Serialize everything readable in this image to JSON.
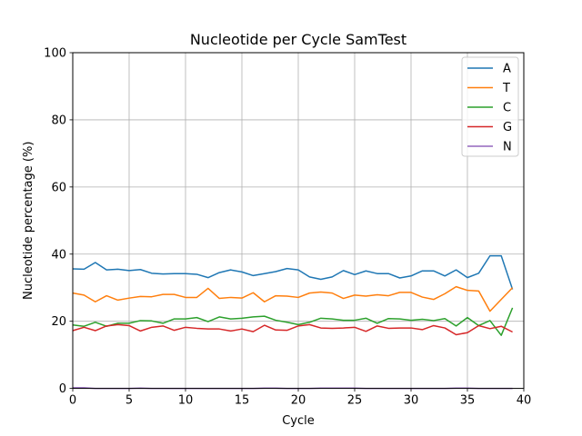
{
  "chart_data": {
    "type": "line",
    "title": "Nucleotide per Cycle SamTest",
    "xlabel": "Cycle",
    "ylabel": "Nucleotide percentage (%)",
    "xlim": [
      0,
      40
    ],
    "ylim": [
      0,
      100
    ],
    "xticks": [
      "0",
      "5",
      "10",
      "15",
      "20",
      "25",
      "30",
      "35",
      "40"
    ],
    "yticks": [
      "0",
      "20",
      "40",
      "60",
      "80",
      "100"
    ],
    "grid": true,
    "legend_position": "top-right",
    "x": [
      0,
      1,
      2,
      3,
      4,
      5,
      6,
      7,
      8,
      9,
      10,
      11,
      12,
      13,
      14,
      15,
      16,
      17,
      18,
      19,
      20,
      21,
      22,
      23,
      24,
      25,
      26,
      27,
      28,
      29,
      30,
      31,
      32,
      33,
      34,
      35,
      36,
      37,
      38,
      39
    ],
    "series": [
      {
        "name": "A",
        "color": "#1f77b4",
        "values": [
          35.6,
          35.5,
          37.5,
          35.3,
          35.5,
          35.1,
          35.4,
          34.3,
          34.1,
          34.2,
          34.2,
          34.0,
          33.0,
          34.5,
          35.3,
          34.7,
          33.6,
          34.2,
          34.8,
          35.7,
          35.3,
          33.2,
          32.5,
          33.2,
          35.1,
          33.9,
          35.0,
          34.2,
          34.2,
          32.9,
          33.5,
          35.0,
          35.0,
          33.5,
          35.3,
          33.0,
          34.3,
          39.5,
          39.5,
          29.5
        ]
      },
      {
        "name": "T",
        "color": "#ff7f0e",
        "values": [
          28.4,
          27.8,
          25.8,
          27.6,
          26.3,
          26.9,
          27.4,
          27.3,
          28.0,
          28.0,
          27.1,
          27.1,
          29.8,
          26.8,
          27.1,
          26.9,
          28.5,
          25.8,
          27.6,
          27.5,
          27.1,
          28.4,
          28.7,
          28.4,
          26.8,
          27.8,
          27.5,
          27.9,
          27.6,
          28.6,
          28.6,
          27.2,
          26.5,
          28.2,
          30.3,
          29.2,
          29.0,
          23.0,
          26.5,
          30.0
        ]
      },
      {
        "name": "C",
        "color": "#2ca02c",
        "values": [
          18.9,
          18.5,
          19.7,
          18.5,
          19.4,
          19.4,
          20.2,
          20.1,
          19.4,
          20.7,
          20.7,
          21.1,
          19.9,
          21.3,
          20.7,
          20.9,
          21.3,
          21.5,
          20.3,
          19.7,
          19.0,
          19.7,
          20.9,
          20.7,
          20.3,
          20.3,
          20.9,
          19.4,
          20.8,
          20.7,
          20.3,
          20.6,
          20.2,
          20.8,
          18.6,
          21.1,
          18.7,
          20.2,
          15.8,
          24.0
        ]
      },
      {
        "name": "G",
        "color": "#d62728",
        "values": [
          17.2,
          18.2,
          17.2,
          18.6,
          19.0,
          18.7,
          17.1,
          18.2,
          18.6,
          17.3,
          18.2,
          17.9,
          17.7,
          17.7,
          17.1,
          17.7,
          16.9,
          18.8,
          17.4,
          17.3,
          18.6,
          19.0,
          18.0,
          17.9,
          18.0,
          18.2,
          17.0,
          18.6,
          17.9,
          18.0,
          18.0,
          17.5,
          18.7,
          18.0,
          16.0,
          16.6,
          18.7,
          17.8,
          18.5,
          16.8
        ]
      },
      {
        "name": "N",
        "color": "#9467bd",
        "values": [
          0.2,
          0.2,
          0.0,
          0.0,
          0.0,
          0.0,
          0.1,
          0.0,
          0.0,
          0.0,
          0.0,
          0.0,
          0.0,
          0.0,
          0.0,
          0.0,
          0.0,
          0.1,
          0.1,
          0.0,
          0.0,
          0.0,
          0.1,
          0.1,
          0.1,
          0.1,
          0.0,
          0.0,
          0.0,
          0.0,
          0.0,
          0.0,
          0.0,
          0.0,
          0.1,
          0.1,
          0.0,
          0.0,
          0.0,
          0.0
        ]
      }
    ]
  }
}
